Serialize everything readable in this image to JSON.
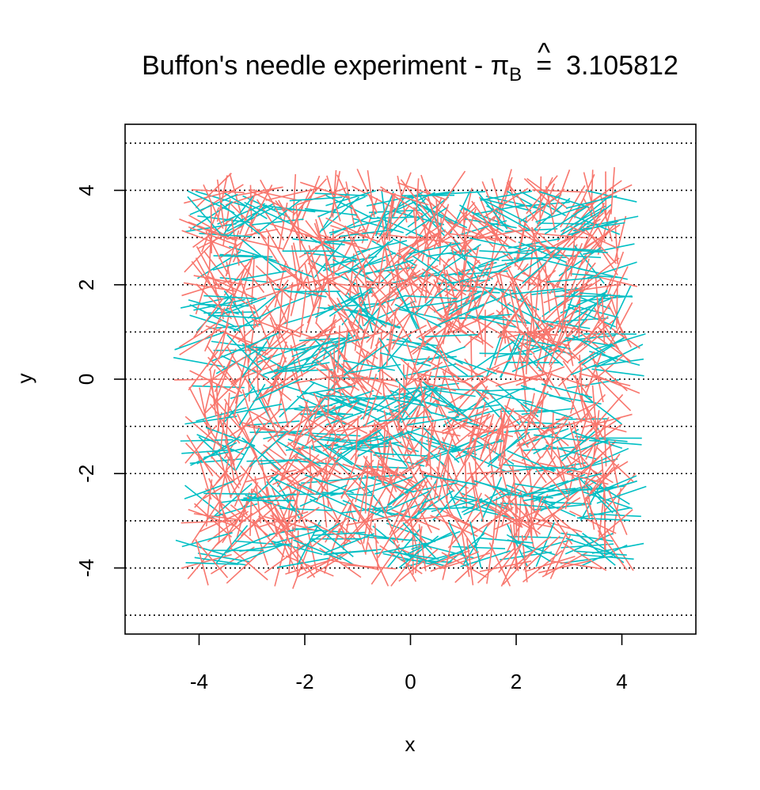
{
  "chart_data": {
    "type": "line",
    "title_prefix": "Buffon's needle experiment  -  ",
    "title_symbol": "π",
    "title_hat": "^",
    "title_subscript": "B",
    "title_equals": "=",
    "title_value": "3.105812",
    "xlabel": "x",
    "ylabel": "y",
    "xlim": [
      -5.4,
      5.4
    ],
    "ylim": [
      -5.4,
      5.4
    ],
    "xticks": [
      -4,
      -2,
      0,
      2,
      4
    ],
    "xtick_labels": [
      "-4",
      "-2",
      "0",
      "2",
      "4"
    ],
    "yticks": [
      -4,
      -2,
      0,
      2,
      4
    ],
    "ytick_labels": [
      "-4",
      "-2",
      "0",
      "2",
      "4"
    ],
    "reference_lines_y": [
      -5,
      -4,
      -3,
      -2,
      -1,
      0,
      1,
      2,
      3,
      4,
      5
    ],
    "needle_length": 1,
    "needle_center_range": [
      -4,
      4
    ],
    "grid": false,
    "legend": "none",
    "series": [
      {
        "color": "#F8766D"
      },
      {
        "color": "#00BFC4"
      }
    ]
  }
}
